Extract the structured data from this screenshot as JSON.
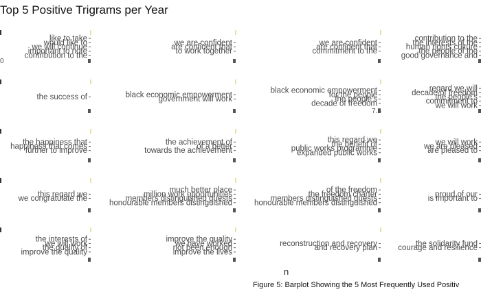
{
  "chart_data": {
    "type": "bar",
    "title": "Top 5 Positive Trigrams per Year",
    "xlabel": "n",
    "caption": "Figure 5: Barplot Showing the 5 Most Frequently Used Positiv",
    "panels": [
      {
        "labels": [
          "like to take",
          "would like to",
          "we will continue",
          "important to note",
          "contribution to the"
        ],
        "axis_label": "0"
      },
      {
        "labels": [
          "we are confident",
          "are confident that",
          "to work together"
        ]
      },
      {
        "labels": [
          "we are confident",
          "are confident that",
          "commitment to the"
        ]
      },
      {
        "labels": [
          "contribution to the",
          "the interests of the",
          "human rights culture",
          "the people of the",
          "good governance and"
        ]
      },
      {
        "labels": [
          "the success of"
        ]
      },
      {
        "labels": [
          "black economic empowerment",
          "government will work"
        ]
      },
      {
        "labels": [
          "black economic empowerment",
          "for the people",
          "the people's",
          "decade of freedom"
        ],
        "axis_label": "7.5"
      },
      {
        "labels": [
          "regard we will",
          "decade of freedom",
          "the people's",
          "commitment to",
          "we will work"
        ]
      },
      {
        "labels": [
          "the happiness that",
          "happiness that comes",
          "further to improve"
        ]
      },
      {
        "labels": [
          "the achievement of",
          "of a better",
          "towards the achievement"
        ]
      },
      {
        "labels": [
          "this regard we",
          "the benefit of",
          "public works programme",
          "expanded public works"
        ]
      },
      {
        "labels": [
          "we will work",
          "we are pleased",
          "are pleased to"
        ]
      },
      {
        "labels": [
          "this regard we",
          "we congratulate the"
        ]
      },
      {
        "labels": [
          "much better place",
          "million work opportunities",
          "members distinguished guests",
          "honourable members distinguished"
        ]
      },
      {
        "labels": [
          "of the freedom",
          "the freedom charter",
          "members distinguished guests",
          "honourable members distinguished"
        ]
      },
      {
        "labels": [
          "proud of our",
          "is important to"
        ]
      },
      {
        "labels": [
          "the interests of",
          "we will work",
          "the quality of",
          "improve the quality"
        ]
      },
      {
        "labels": [
          "improve the quality",
          "we have worked",
          "not been enough",
          "improve the lives"
        ]
      },
      {
        "labels": [
          "reconstruction and recovery",
          "and recovery plan"
        ]
      },
      {
        "labels": [
          "the solidarity fund",
          "courage and resilience"
        ]
      }
    ]
  }
}
